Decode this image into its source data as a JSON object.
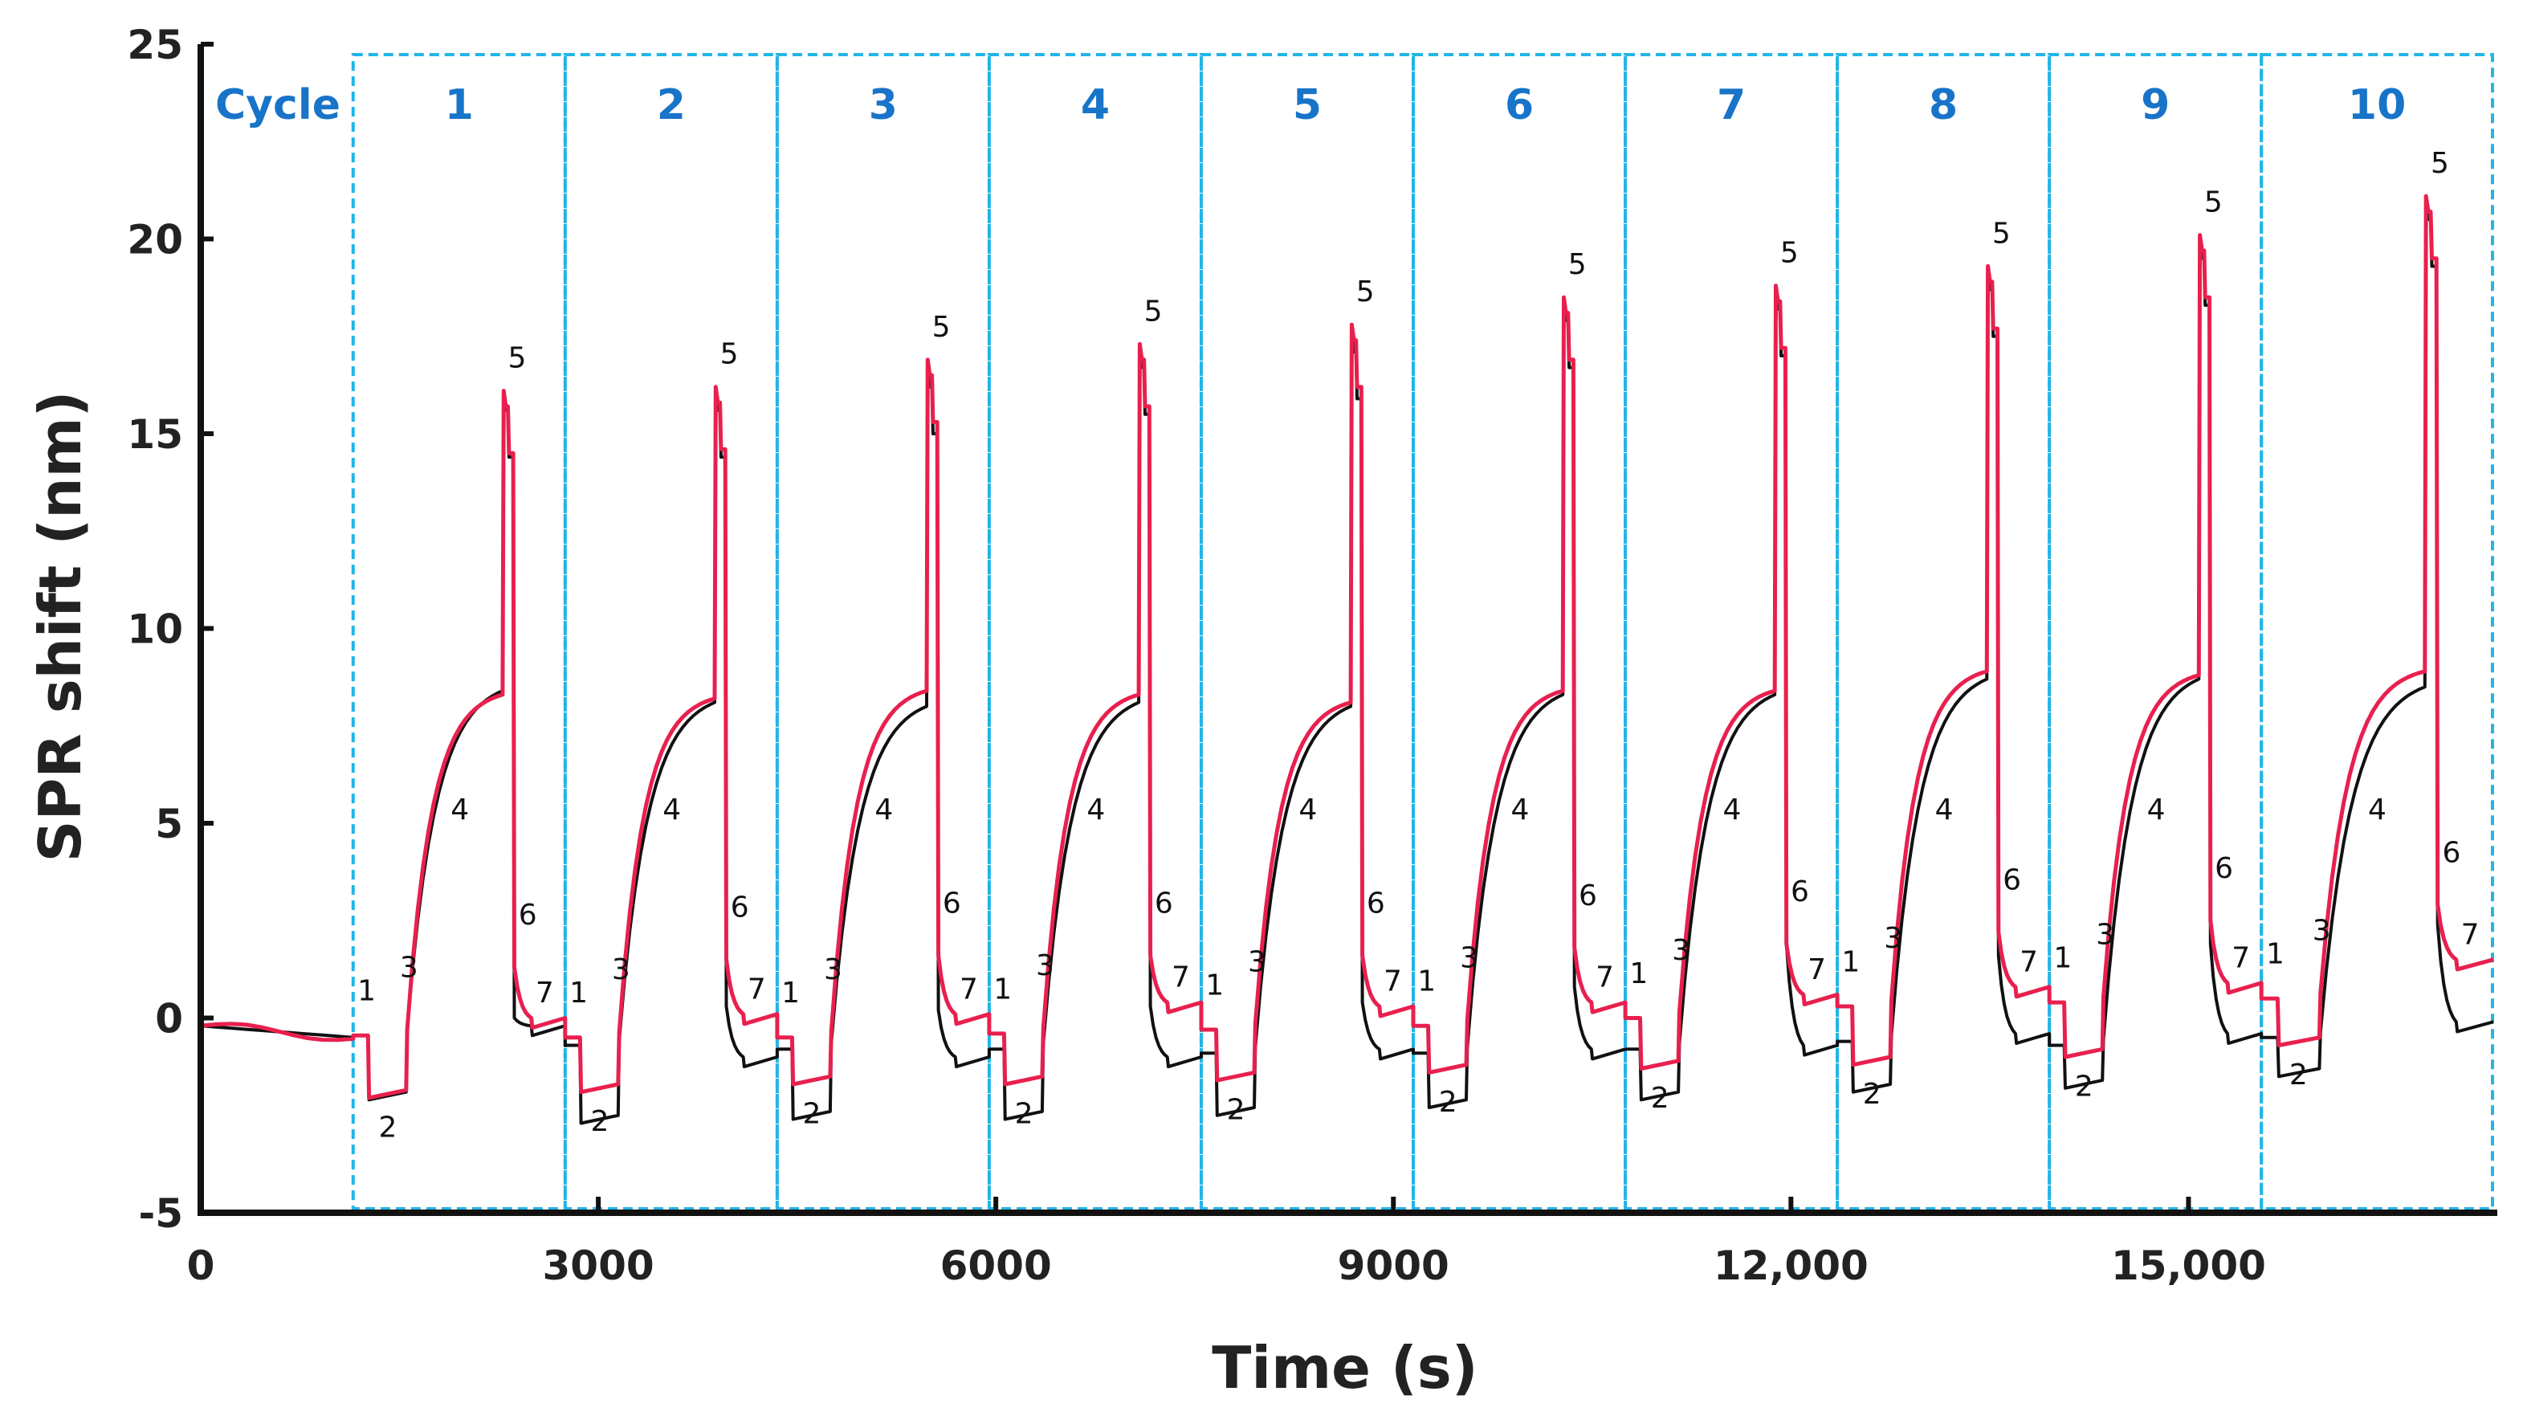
{
  "chart_data": {
    "type": "line",
    "xlabel": "Time (s)",
    "ylabel": "SPR shift (nm)",
    "xlim": [
      0,
      17300
    ],
    "ylim": [
      -5,
      25
    ],
    "x_ticks": [
      {
        "value": 0,
        "label": "0"
      },
      {
        "value": 3000,
        "label": "3000"
      },
      {
        "value": 6000,
        "label": "6000"
      },
      {
        "value": 9000,
        "label": "9000"
      },
      {
        "value": 12000,
        "label": "12,000"
      },
      {
        "value": 15000,
        "label": "15,000"
      }
    ],
    "y_ticks": [
      {
        "value": -5,
        "label": "-5"
      },
      {
        "value": 0,
        "label": "0"
      },
      {
        "value": 5,
        "label": "5"
      },
      {
        "value": 10,
        "label": "10"
      },
      {
        "value": 15,
        "label": "15"
      },
      {
        "value": 20,
        "label": "20"
      },
      {
        "value": 25,
        "label": "25"
      }
    ],
    "cycle_header": "Cycle",
    "baseline": {
      "start_time": 0,
      "end_time": 1150,
      "start_value": -0.2,
      "end_value": -0.5
    },
    "cycles": [
      {
        "label": "1",
        "start": 1150,
        "end": 2750,
        "black": {
          "step1": -0.45,
          "step2": -2.1,
          "plateau": 8.4,
          "peak": 16.0,
          "step6": 0.0,
          "step7": -0.4
        },
        "red": {
          "step1": -0.45,
          "step2": -2.05,
          "plateau": 8.3,
          "peak": 16.1,
          "step6": 1.3,
          "step7": -0.2
        }
      },
      {
        "label": "2",
        "start": 2750,
        "end": 4350,
        "black": {
          "step1": -0.7,
          "step2": -2.7,
          "plateau": 8.1,
          "peak": 16.0,
          "step6": 0.3,
          "step7": -1.2
        },
        "red": {
          "step1": -0.5,
          "step2": -1.9,
          "plateau": 8.2,
          "peak": 16.2,
          "step6": 1.5,
          "step7": -0.1
        }
      },
      {
        "label": "3",
        "start": 4350,
        "end": 5950,
        "black": {
          "step1": -0.8,
          "step2": -2.6,
          "plateau": 8.0,
          "peak": 16.6,
          "step6": 0.2,
          "step7": -1.2
        },
        "red": {
          "step1": -0.5,
          "step2": -1.7,
          "plateau": 8.4,
          "peak": 16.9,
          "step6": 1.6,
          "step7": -0.1
        }
      },
      {
        "label": "4",
        "start": 5950,
        "end": 7550,
        "black": {
          "step1": -0.8,
          "step2": -2.6,
          "plateau": 8.1,
          "peak": 17.1,
          "step6": 0.3,
          "step7": -1.2
        },
        "red": {
          "step1": -0.4,
          "step2": -1.7,
          "plateau": 8.3,
          "peak": 17.3,
          "step6": 1.6,
          "step7": 0.2
        }
      },
      {
        "label": "5",
        "start": 7550,
        "end": 9150,
        "black": {
          "step1": -0.9,
          "step2": -2.5,
          "plateau": 8.0,
          "peak": 17.5,
          "step6": 0.4,
          "step7": -1.0
        },
        "red": {
          "step1": -0.3,
          "step2": -1.6,
          "plateau": 8.1,
          "peak": 17.8,
          "step6": 1.6,
          "step7": 0.1
        }
      },
      {
        "label": "6",
        "start": 9150,
        "end": 10750,
        "black": {
          "step1": -0.9,
          "step2": -2.3,
          "plateau": 8.3,
          "peak": 18.3,
          "step6": 0.8,
          "step7": -1.0
        },
        "red": {
          "step1": -0.2,
          "step2": -1.4,
          "plateau": 8.4,
          "peak": 18.5,
          "step6": 1.8,
          "step7": 0.2
        }
      },
      {
        "label": "7",
        "start": 10750,
        "end": 12350,
        "black": {
          "step1": -0.8,
          "step2": -2.1,
          "plateau": 8.3,
          "peak": 18.6,
          "step6": 1.9,
          "step7": -0.9
        },
        "red": {
          "step1": 0.0,
          "step2": -1.3,
          "plateau": 8.4,
          "peak": 18.8,
          "step6": 1.9,
          "step7": 0.4
        }
      },
      {
        "label": "8",
        "start": 12350,
        "end": 13950,
        "black": {
          "step1": -0.6,
          "step2": -1.9,
          "plateau": 8.7,
          "peak": 19.1,
          "step6": 1.6,
          "step7": -0.6
        },
        "red": {
          "step1": 0.3,
          "step2": -1.2,
          "plateau": 8.9,
          "peak": 19.3,
          "step6": 2.2,
          "step7": 0.6
        }
      },
      {
        "label": "9",
        "start": 13950,
        "end": 15550,
        "black": {
          "step1": -0.7,
          "step2": -1.8,
          "plateau": 8.7,
          "peak": 19.9,
          "step6": 1.9,
          "step7": -0.6
        },
        "red": {
          "step1": 0.4,
          "step2": -1.0,
          "plateau": 8.8,
          "peak": 20.1,
          "step6": 2.5,
          "step7": 0.7
        }
      },
      {
        "label": "10",
        "start": 15550,
        "end": 17300,
        "black": {
          "step1": -0.5,
          "step2": -1.5,
          "plateau": 8.5,
          "peak": 20.9,
          "step6": 2.4,
          "step7": -0.3
        },
        "red": {
          "step1": 0.5,
          "step2": -0.7,
          "plateau": 8.9,
          "peak": 21.1,
          "step6": 2.9,
          "step7": 1.3
        }
      }
    ],
    "series": [
      {
        "name": "black trace",
        "color": "#111111"
      },
      {
        "name": "red trace",
        "color": "#e8204e"
      }
    ],
    "step_numbers": [
      "1",
      "2",
      "3",
      "4",
      "5",
      "6",
      "7"
    ]
  },
  "colors": {
    "cycle_box": "#22b5e8",
    "cycle_text": "#1874c8",
    "axis": "#111111"
  }
}
